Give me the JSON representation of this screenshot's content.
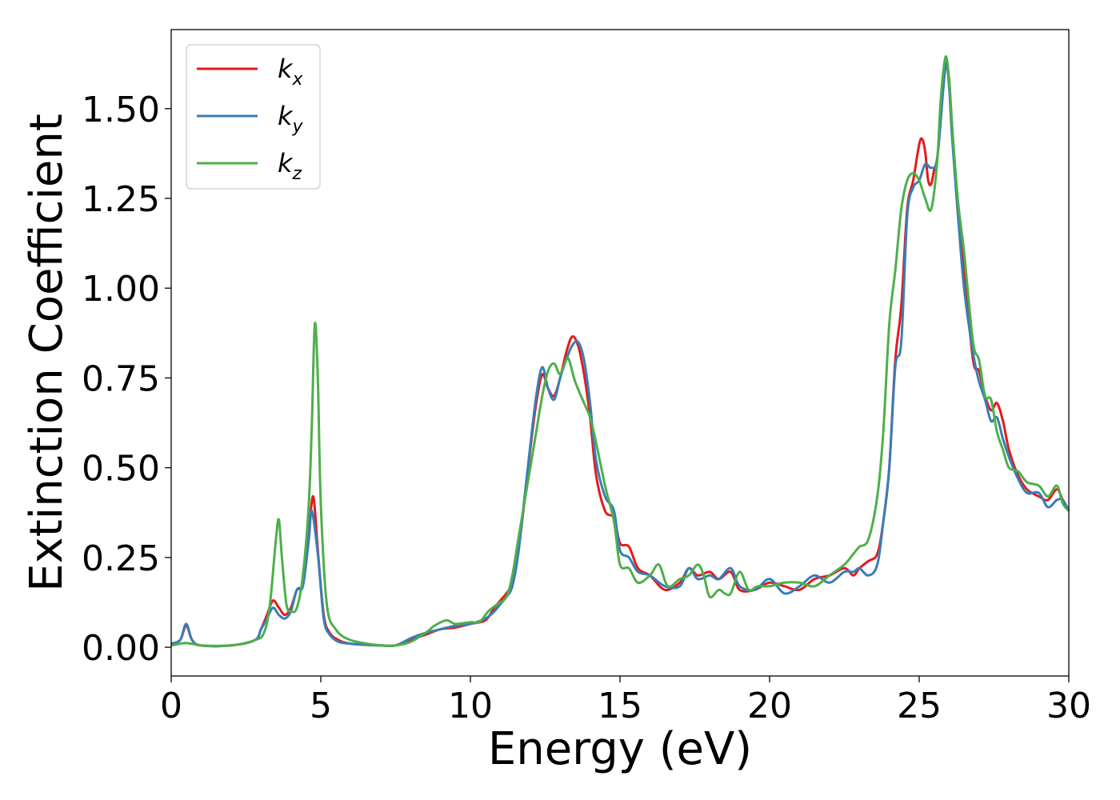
{
  "chart_data": {
    "type": "line",
    "title": "",
    "xlabel": "Energy (eV)",
    "ylabel": "Extinction Coefficient",
    "xlim": [
      0,
      30
    ],
    "ylim": [
      -0.08,
      1.72
    ],
    "xticks": [
      0,
      5,
      10,
      15,
      20,
      25,
      30
    ],
    "xtick_labels": [
      "0",
      "5",
      "10",
      "15",
      "20",
      "25",
      "30"
    ],
    "yticks": [
      0.0,
      0.25,
      0.5,
      0.75,
      1.0,
      1.25,
      1.5
    ],
    "ytick_labels": [
      "0.00",
      "0.25",
      "0.50",
      "0.75",
      "1.00",
      "1.25",
      "1.50"
    ],
    "grid": false,
    "legend_position": "top-left",
    "series": [
      {
        "name": "k",
        "subscript": "x",
        "color": "#e41a1c",
        "x": [
          0,
          0.3,
          0.5,
          0.7,
          1.0,
          2.0,
          2.8,
          3.0,
          3.2,
          3.4,
          3.6,
          3.8,
          4.0,
          4.2,
          4.4,
          4.6,
          4.75,
          4.9,
          5.1,
          5.3,
          5.6,
          6.0,
          7.0,
          7.5,
          8.0,
          8.5,
          9.0,
          9.5,
          10.0,
          10.5,
          10.8,
          11.0,
          11.2,
          11.4,
          11.6,
          11.8,
          12.0,
          12.2,
          12.4,
          12.6,
          12.8,
          13.0,
          13.2,
          13.4,
          13.6,
          13.8,
          14.0,
          14.2,
          14.5,
          14.8,
          15.0,
          15.3,
          15.6,
          16.0,
          16.5,
          17.0,
          17.3,
          17.6,
          18.0,
          18.3,
          18.7,
          19.0,
          19.5,
          20.0,
          20.5,
          21.0,
          21.5,
          22.0,
          22.5,
          22.8,
          23.0,
          23.3,
          23.6,
          23.8,
          24.0,
          24.2,
          24.4,
          24.6,
          24.8,
          25.0,
          25.1,
          25.2,
          25.3,
          25.4,
          25.5,
          25.6,
          25.7,
          25.8,
          25.9,
          26.0,
          26.1,
          26.3,
          26.5,
          26.8,
          27.0,
          27.2,
          27.4,
          27.6,
          27.8,
          28.0,
          28.3,
          28.6,
          29.0,
          29.3,
          29.6,
          29.8,
          30.0
        ],
        "y": [
          0.01,
          0.02,
          0.06,
          0.02,
          0.005,
          0.005,
          0.02,
          0.05,
          0.09,
          0.13,
          0.11,
          0.09,
          0.11,
          0.16,
          0.18,
          0.32,
          0.42,
          0.27,
          0.09,
          0.04,
          0.02,
          0.01,
          0.005,
          0.005,
          0.02,
          0.035,
          0.05,
          0.055,
          0.065,
          0.075,
          0.11,
          0.13,
          0.15,
          0.18,
          0.27,
          0.4,
          0.55,
          0.68,
          0.76,
          0.72,
          0.7,
          0.75,
          0.82,
          0.865,
          0.84,
          0.76,
          0.64,
          0.48,
          0.38,
          0.36,
          0.29,
          0.28,
          0.22,
          0.2,
          0.16,
          0.18,
          0.22,
          0.2,
          0.21,
          0.19,
          0.21,
          0.16,
          0.16,
          0.18,
          0.17,
          0.16,
          0.19,
          0.2,
          0.22,
          0.2,
          0.22,
          0.24,
          0.26,
          0.35,
          0.5,
          0.8,
          0.95,
          1.22,
          1.3,
          1.4,
          1.415,
          1.38,
          1.3,
          1.29,
          1.33,
          1.36,
          1.45,
          1.56,
          1.62,
          1.58,
          1.45,
          1.2,
          1.05,
          0.8,
          0.77,
          0.7,
          0.66,
          0.68,
          0.63,
          0.55,
          0.48,
          0.44,
          0.42,
          0.41,
          0.44,
          0.41,
          0.38
        ]
      },
      {
        "name": "k",
        "subscript": "y",
        "color": "#377eb8",
        "x": [
          0,
          0.3,
          0.5,
          0.7,
          1.0,
          2.0,
          2.8,
          3.0,
          3.2,
          3.4,
          3.6,
          3.8,
          4.0,
          4.2,
          4.4,
          4.6,
          4.7,
          4.9,
          5.1,
          5.3,
          5.6,
          6.0,
          7.0,
          7.5,
          8.0,
          8.5,
          9.0,
          9.5,
          10.0,
          10.5,
          10.8,
          11.0,
          11.2,
          11.4,
          11.6,
          11.8,
          12.0,
          12.2,
          12.4,
          12.6,
          12.8,
          13.0,
          13.2,
          13.4,
          13.6,
          13.8,
          14.0,
          14.2,
          14.5,
          14.8,
          15.0,
          15.3,
          15.6,
          16.0,
          16.5,
          17.0,
          17.3,
          17.6,
          18.0,
          18.3,
          18.7,
          19.0,
          19.5,
          20.0,
          20.5,
          21.0,
          21.5,
          22.0,
          22.5,
          22.8,
          23.0,
          23.3,
          23.6,
          23.8,
          24.0,
          24.2,
          24.4,
          24.6,
          24.8,
          25.0,
          25.2,
          25.4,
          25.6,
          25.8,
          25.9,
          26.0,
          26.1,
          26.3,
          26.5,
          26.8,
          27.0,
          27.2,
          27.4,
          27.6,
          27.8,
          28.0,
          28.3,
          28.6,
          29.0,
          29.3,
          29.6,
          29.8,
          30.0
        ],
        "y": [
          0.01,
          0.02,
          0.065,
          0.02,
          0.005,
          0.005,
          0.02,
          0.05,
          0.08,
          0.11,
          0.09,
          0.08,
          0.1,
          0.16,
          0.17,
          0.3,
          0.38,
          0.26,
          0.08,
          0.035,
          0.015,
          0.01,
          0.005,
          0.005,
          0.025,
          0.04,
          0.05,
          0.06,
          0.065,
          0.08,
          0.1,
          0.12,
          0.14,
          0.17,
          0.26,
          0.41,
          0.56,
          0.7,
          0.78,
          0.72,
          0.69,
          0.75,
          0.8,
          0.84,
          0.85,
          0.8,
          0.68,
          0.52,
          0.42,
          0.38,
          0.27,
          0.25,
          0.21,
          0.2,
          0.17,
          0.17,
          0.22,
          0.19,
          0.2,
          0.19,
          0.22,
          0.17,
          0.16,
          0.19,
          0.15,
          0.17,
          0.2,
          0.18,
          0.21,
          0.21,
          0.22,
          0.2,
          0.23,
          0.35,
          0.5,
          0.78,
          0.85,
          1.2,
          1.28,
          1.3,
          1.345,
          1.335,
          1.36,
          1.55,
          1.63,
          1.56,
          1.42,
          1.2,
          1.0,
          0.82,
          0.74,
          0.69,
          0.63,
          0.64,
          0.58,
          0.53,
          0.47,
          0.43,
          0.43,
          0.39,
          0.41,
          0.41,
          0.38
        ]
      },
      {
        "name": "k",
        "subscript": "z",
        "color": "#4daf4a",
        "x": [
          0,
          0.3,
          0.5,
          0.8,
          1.0,
          2.0,
          2.8,
          3.1,
          3.3,
          3.5,
          3.6,
          3.7,
          3.85,
          4.0,
          4.2,
          4.4,
          4.6,
          4.7,
          4.8,
          4.9,
          5.0,
          5.2,
          5.5,
          6.0,
          7.0,
          7.5,
          8.0,
          8.5,
          8.8,
          9.2,
          9.5,
          10.0,
          10.3,
          10.6,
          10.9,
          11.2,
          11.4,
          11.6,
          11.8,
          12.0,
          12.2,
          12.4,
          12.6,
          12.8,
          13.0,
          13.2,
          13.3,
          13.5,
          13.8,
          14.0,
          14.2,
          14.5,
          14.8,
          15.0,
          15.3,
          15.6,
          16.0,
          16.3,
          16.6,
          17.0,
          17.3,
          17.6,
          17.8,
          18.0,
          18.3,
          18.5,
          18.7,
          19.0,
          19.3,
          19.6,
          20.0,
          20.5,
          21.0,
          21.5,
          22.0,
          22.5,
          22.8,
          23.0,
          23.3,
          23.6,
          23.8,
          24.0,
          24.2,
          24.4,
          24.6,
          24.8,
          25.0,
          25.2,
          25.4,
          25.6,
          25.7,
          25.8,
          25.9,
          26.0,
          26.1,
          26.3,
          26.5,
          26.8,
          27.0,
          27.2,
          27.4,
          27.6,
          27.8,
          28.0,
          28.3,
          28.6,
          29.0,
          29.3,
          29.6,
          29.8,
          30.0
        ],
        "y": [
          0.005,
          0.01,
          0.012,
          0.008,
          0.005,
          0.005,
          0.02,
          0.04,
          0.12,
          0.3,
          0.355,
          0.25,
          0.12,
          0.1,
          0.11,
          0.2,
          0.4,
          0.62,
          0.9,
          0.75,
          0.4,
          0.12,
          0.05,
          0.02,
          0.005,
          0.005,
          0.015,
          0.04,
          0.06,
          0.075,
          0.065,
          0.07,
          0.07,
          0.1,
          0.12,
          0.14,
          0.2,
          0.3,
          0.4,
          0.5,
          0.6,
          0.7,
          0.77,
          0.79,
          0.76,
          0.8,
          0.8,
          0.74,
          0.68,
          0.64,
          0.57,
          0.45,
          0.35,
          0.23,
          0.22,
          0.18,
          0.2,
          0.23,
          0.17,
          0.19,
          0.2,
          0.23,
          0.2,
          0.14,
          0.16,
          0.15,
          0.15,
          0.21,
          0.16,
          0.17,
          0.17,
          0.18,
          0.18,
          0.17,
          0.2,
          0.23,
          0.26,
          0.28,
          0.3,
          0.42,
          0.6,
          0.9,
          1.05,
          1.22,
          1.3,
          1.32,
          1.3,
          1.25,
          1.22,
          1.35,
          1.5,
          1.6,
          1.645,
          1.58,
          1.45,
          1.24,
          1.1,
          0.85,
          0.8,
          0.7,
          0.69,
          0.6,
          0.55,
          0.5,
          0.49,
          0.46,
          0.45,
          0.42,
          0.45,
          0.4,
          0.38
        ]
      }
    ]
  }
}
